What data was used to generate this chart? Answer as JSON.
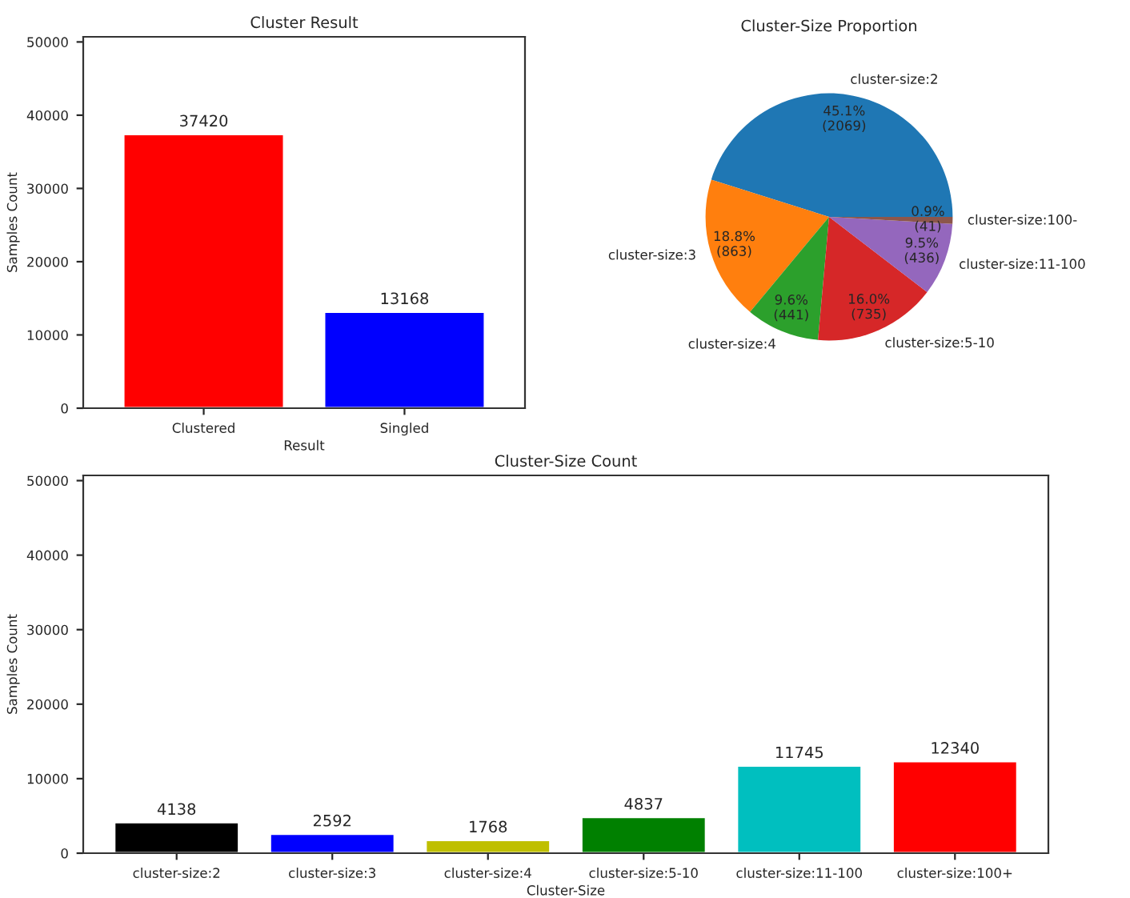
{
  "chart_data": [
    {
      "type": "bar",
      "title": "Cluster Result",
      "xlabel": "Result",
      "ylabel": "Samples Count",
      "categories": [
        "Clustered",
        "Singled"
      ],
      "values": [
        37420,
        13168
      ],
      "colors": [
        "#ff0000",
        "#0000ff"
      ],
      "ylim": [
        0,
        50700
      ],
      "yticks": [
        0,
        10000,
        20000,
        30000,
        40000,
        50000
      ],
      "data_labels": true,
      "grid": false,
      "legend": false
    },
    {
      "type": "pie",
      "title": "Cluster-Size Proportion",
      "categories": [
        "cluster-size:2",
        "cluster-size:3",
        "cluster-size:4",
        "cluster-size:5-10",
        "cluster-size:11-100",
        "cluster-size:100-"
      ],
      "values": [
        2069,
        863,
        441,
        735,
        436,
        41
      ],
      "colors": [
        "#1f77b4",
        "#ff7f0e",
        "#2ca02c",
        "#d62728",
        "#9467bd",
        "#8c564b"
      ],
      "value_labels": [
        "45.1%\n(2069)",
        "18.8%\n(863)",
        "9.6%\n(441)",
        "16.0%\n(735)",
        "9.5%\n(436)",
        "0.9%\n(41)"
      ],
      "legend": false
    },
    {
      "type": "bar",
      "title": "Cluster-Size Count",
      "xlabel": "Cluster-Size",
      "ylabel": "Samples Count",
      "categories": [
        "cluster-size:2",
        "cluster-size:3",
        "cluster-size:4",
        "cluster-size:5-10",
        "cluster-size:11-100",
        "cluster-size:100+"
      ],
      "values": [
        4138,
        2592,
        1768,
        4837,
        11745,
        12340
      ],
      "colors": [
        "#000000",
        "#0000ff",
        "#bfbf00",
        "#008000",
        "#00bfbf",
        "#ff0000"
      ],
      "ylim": [
        0,
        50700
      ],
      "yticks": [
        0,
        10000,
        20000,
        30000,
        40000,
        50000
      ],
      "data_labels": true,
      "grid": false,
      "legend": false
    }
  ]
}
